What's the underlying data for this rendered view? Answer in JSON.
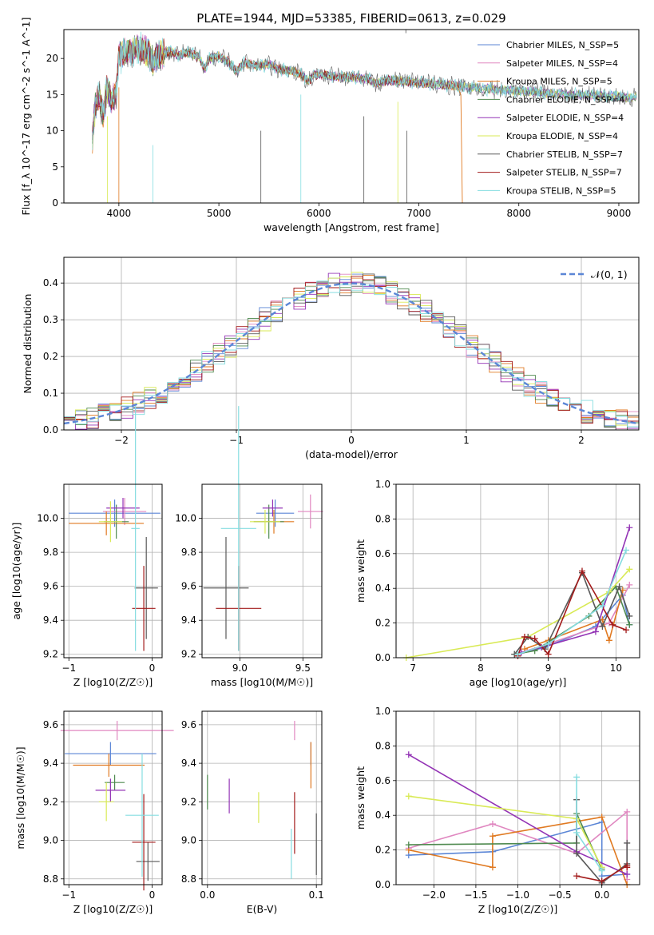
{
  "figure": {
    "title": "PLATE=1944, MJD=53385, FIBERID=0613, z=0.029",
    "colors": {
      "c0": "#5b86d6",
      "c1": "#e087c0",
      "c2": "#e07a22",
      "c3": "#4f8a4f",
      "c4": "#9333b5",
      "c5": "#d9ea56",
      "c6": "#595959",
      "c7": "#a31b1b",
      "c8": "#86dde0"
    }
  },
  "chart_data": [
    {
      "id": "spectrum",
      "type": "line",
      "title": "PLATE=1944, MJD=53385, FIBERID=0613, z=0.029",
      "xlabel": "wavelength [Angstrom, rest frame]",
      "ylabel": "Flux [f_λ 10^-17 erg cm^-2 s^-1 A^-1]",
      "xlim": [
        3450,
        9200
      ],
      "ylim": [
        0,
        24
      ],
      "xticks": [
        "4000",
        "5000",
        "6000",
        "7000",
        "8000",
        "9000"
      ],
      "yticks": [
        "0",
        "5",
        "10",
        "15",
        "20"
      ],
      "grid": false,
      "legend_position": "top-right",
      "spectrum_anchors": [
        [
          3735,
          8.5
        ],
        [
          3760,
          13
        ],
        [
          3800,
          15
        ],
        [
          3840,
          12
        ],
        [
          3880,
          16
        ],
        [
          3930,
          14
        ],
        [
          3970,
          15
        ],
        [
          4000,
          20
        ],
        [
          4050,
          21
        ],
        [
          4100,
          20.8
        ],
        [
          4200,
          21.5
        ],
        [
          4300,
          20.8
        ],
        [
          4340,
          19.5
        ],
        [
          4400,
          20.5
        ],
        [
          4500,
          21
        ],
        [
          4600,
          20.5
        ],
        [
          4700,
          20.8
        ],
        [
          4800,
          20.2
        ],
        [
          4861,
          18.5
        ],
        [
          4900,
          20
        ],
        [
          5000,
          20.3
        ],
        [
          5100,
          19.5
        ],
        [
          5175,
          18.2
        ],
        [
          5250,
          19.3
        ],
        [
          5400,
          19
        ],
        [
          5500,
          19.2
        ],
        [
          5600,
          18.5
        ],
        [
          5700,
          18.3
        ],
        [
          5800,
          18
        ],
        [
          5890,
          16.8
        ],
        [
          5950,
          17.8
        ],
        [
          6100,
          17.6
        ],
        [
          6300,
          17.4
        ],
        [
          6500,
          17.2
        ],
        [
          6563,
          16.5
        ],
        [
          6700,
          17
        ],
        [
          6900,
          16.8
        ],
        [
          7000,
          16.6
        ],
        [
          7200,
          16.4
        ],
        [
          7400,
          16.2
        ],
        [
          7500,
          16
        ],
        [
          7700,
          15.8
        ],
        [
          7900,
          15.6
        ],
        [
          8100,
          15.4
        ],
        [
          8300,
          15.2
        ],
        [
          8500,
          15
        ],
        [
          8700,
          14.9
        ],
        [
          8900,
          14.8
        ],
        [
          9000,
          14.7
        ],
        [
          9100,
          14.6
        ]
      ],
      "series": [
        {
          "name": "Chabrier MILES, N_SSP=5",
          "color_key": "c0"
        },
        {
          "name": "Salpeter MILES, N_SSP=4",
          "color_key": "c1"
        },
        {
          "name": "Kroupa MILES, N_SSP=5",
          "color_key": "c2"
        },
        {
          "name": "Chabrier ELODIE, N_SSP=4",
          "color_key": "c3"
        },
        {
          "name": "Salpeter ELODIE, N_SSP=4",
          "color_key": "c4"
        },
        {
          "name": "Kroupa ELODIE, N_SSP=4",
          "color_key": "c5"
        },
        {
          "name": "Chabrier STELIB, N_SSP=7",
          "color_key": "c6"
        },
        {
          "name": "Salpeter STELIB, N_SSP=7",
          "color_key": "c7"
        },
        {
          "name": "Kroupa STELIB, N_SSP=5",
          "color_key": "c8"
        }
      ]
    },
    {
      "id": "residuals",
      "type": "step",
      "xlabel": "(data-model)/error",
      "ylabel": "Normed distribution",
      "xlim": [
        -2.5,
        2.5
      ],
      "ylim": [
        0,
        0.47
      ],
      "xticks": [
        "−2",
        "−1",
        "0",
        "1",
        "2"
      ],
      "yticks": [
        "0.0",
        "0.1",
        "0.2",
        "0.3",
        "0.4"
      ],
      "grid": true,
      "legend_label": "𝒩(0, 1)",
      "legend_position": "top-right",
      "bin_width": 0.1
    },
    {
      "id": "age_vs_Z",
      "type": "errorbar",
      "xlabel": "Z [log10(Z/Z☉)]",
      "ylabel": "age  [log10(age/yr)]",
      "xlim": [
        -1.06,
        0.12
      ],
      "ylim": [
        9.18,
        10.2
      ],
      "xticks": [
        "−1",
        "0"
      ],
      "yticks": [
        "9.2",
        "9.4",
        "9.6",
        "9.8",
        "10.0"
      ],
      "grid": true,
      "points": [
        {
          "c": "c0",
          "x": -0.45,
          "xerr": 0.55,
          "y": 10.03,
          "yerr": 0.08
        },
        {
          "c": "c1",
          "x": -0.33,
          "xerr": 0.26,
          "y": 10.04,
          "yerr": 0.08
        },
        {
          "c": "c2",
          "x": -0.55,
          "xerr": 0.45,
          "y": 9.97,
          "yerr": 0.07
        },
        {
          "c": "c3",
          "x": -0.43,
          "xerr": 0.15,
          "y": 9.98,
          "yerr": 0.1
        },
        {
          "c": "c4",
          "x": -0.35,
          "xerr": 0.2,
          "y": 10.06,
          "yerr": 0.06
        },
        {
          "c": "c5",
          "x": -0.5,
          "xerr": 0.14,
          "y": 9.98,
          "yerr": 0.12
        },
        {
          "c": "c6",
          "x": -0.07,
          "xerr": 0.14,
          "y": 9.59,
          "yerr": 0.3
        },
        {
          "c": "c7",
          "x": -0.1,
          "xerr": 0.14,
          "y": 9.47,
          "yerr": 0.25
        },
        {
          "c": "c8",
          "x": -0.2,
          "xerr": 0.05,
          "y": 9.94,
          "yerr": 0.72
        }
      ]
    },
    {
      "id": "age_vs_mass",
      "type": "errorbar",
      "xlabel": "mass [log10(M/M☉)]",
      "ylabel": "",
      "xlim": [
        8.7,
        9.65
      ],
      "ylim": [
        9.18,
        10.2
      ],
      "xticks": [
        "9.0",
        "9.5"
      ],
      "yticks": [
        "9.2",
        "9.4",
        "9.6",
        "9.8",
        "10.0"
      ],
      "grid": true,
      "points": [
        {
          "c": "c0",
          "x": 9.28,
          "xerr": 0.15,
          "y": 10.03,
          "yerr": 0.08
        },
        {
          "c": "c1",
          "x": 9.56,
          "xerr": 0.1,
          "y": 10.04,
          "yerr": 0.1
        },
        {
          "c": "c2",
          "x": 9.27,
          "xerr": 0.16,
          "y": 9.98,
          "yerr": 0.07
        },
        {
          "c": "c3",
          "x": 9.23,
          "xerr": 0.12,
          "y": 9.98,
          "yerr": 0.1
        },
        {
          "c": "c4",
          "x": 9.26,
          "xerr": 0.08,
          "y": 10.06,
          "yerr": 0.05
        },
        {
          "c": "c5",
          "x": 9.2,
          "xerr": 0.12,
          "y": 9.98,
          "yerr": 0.07
        },
        {
          "c": "c6",
          "x": 8.89,
          "xerr": 0.18,
          "y": 9.59,
          "yerr": 0.3
        },
        {
          "c": "c7",
          "x": 8.99,
          "xerr": 0.18,
          "y": 9.47,
          "yerr": 0.25
        },
        {
          "c": "c8",
          "x": 8.99,
          "xerr": 0.14,
          "y": 9.94,
          "yerr": 0.72
        }
      ]
    },
    {
      "id": "mass_weight_vs_age",
      "type": "line",
      "xlabel": "age  [log10(age/yr)]",
      "ylabel": "mass weight",
      "xlim": [
        6.75,
        10.35
      ],
      "ylim": [
        0,
        1
      ],
      "xticks": [
        "7",
        "8",
        "9",
        "10"
      ],
      "yticks": [
        "0.0",
        "0.2",
        "0.4",
        "0.6",
        "0.8",
        "1.0"
      ],
      "grid": true,
      "series": [
        {
          "c": "c0",
          "points": [
            [
              8.55,
              0.02
            ],
            [
              8.95,
              0.06
            ],
            [
              9.7,
              0.18
            ],
            [
              10.1,
              0.36
            ],
            [
              10.2,
              0.19
            ]
          ]
        },
        {
          "c": "c1",
          "points": [
            [
              8.6,
              0.03
            ],
            [
              9.0,
              0.08
            ],
            [
              9.9,
              0.2
            ],
            [
              10.2,
              0.42
            ]
          ]
        },
        {
          "c": "c2",
          "points": [
            [
              8.65,
              0.05
            ],
            [
              9.0,
              0.1
            ],
            [
              9.8,
              0.22
            ],
            [
              9.9,
              0.1
            ],
            [
              10.1,
              0.39
            ]
          ]
        },
        {
          "c": "c3",
          "points": [
            [
              8.5,
              0.02
            ],
            [
              8.8,
              0.04
            ],
            [
              9.6,
              0.24
            ],
            [
              10.0,
              0.41
            ],
            [
              10.2,
              0.19
            ]
          ]
        },
        {
          "c": "c4",
          "points": [
            [
              8.6,
              0.03
            ],
            [
              8.9,
              0.06
            ],
            [
              9.7,
              0.15
            ],
            [
              10.2,
              0.75
            ]
          ]
        },
        {
          "c": "c5",
          "points": [
            [
              6.9,
              0.0
            ],
            [
              8.7,
              0.12
            ],
            [
              9.9,
              0.38
            ],
            [
              10.2,
              0.51
            ]
          ]
        },
        {
          "c": "c6",
          "points": [
            [
              8.5,
              0.02
            ],
            [
              8.7,
              0.12
            ],
            [
              8.95,
              0.05
            ],
            [
              9.5,
              0.49
            ],
            [
              9.8,
              0.18
            ],
            [
              10.05,
              0.41
            ],
            [
              10.2,
              0.24
            ]
          ]
        },
        {
          "c": "c7",
          "points": [
            [
              8.55,
              0.01
            ],
            [
              8.65,
              0.12
            ],
            [
              8.8,
              0.11
            ],
            [
              9.0,
              0.02
            ],
            [
              9.5,
              0.5
            ],
            [
              9.95,
              0.19
            ],
            [
              10.15,
              0.16
            ]
          ]
        },
        {
          "c": "c8",
          "points": [
            [
              8.55,
              0.02
            ],
            [
              9.0,
              0.08
            ],
            [
              9.8,
              0.3
            ],
            [
              10.15,
              0.62
            ]
          ]
        }
      ]
    },
    {
      "id": "mass_vs_Z",
      "type": "errorbar",
      "xlabel": "Z [log10(Z/Z☉)]",
      "ylabel": "mass [log10(M/M☉)]",
      "xlim": [
        -1.06,
        0.12
      ],
      "ylim": [
        8.77,
        9.67
      ],
      "xticks": [
        "−1",
        "0"
      ],
      "yticks": [
        "8.8",
        "9.0",
        "9.2",
        "9.4",
        "9.6"
      ],
      "grid": true,
      "points": [
        {
          "c": "c0",
          "x": -0.5,
          "xerr": 0.55,
          "y": 9.45,
          "yerr": 0.06
        },
        {
          "c": "c1",
          "x": -0.42,
          "xerr": 0.68,
          "y": 9.57,
          "yerr": 0.05
        },
        {
          "c": "c2",
          "x": -0.52,
          "xerr": 0.43,
          "y": 9.39,
          "yerr": 0.06
        },
        {
          "c": "c3",
          "x": -0.45,
          "xerr": 0.12,
          "y": 9.3,
          "yerr": 0.04
        },
        {
          "c": "c4",
          "x": -0.5,
          "xerr": 0.18,
          "y": 9.26,
          "yerr": 0.06
        },
        {
          "c": "c5",
          "x": -0.55,
          "xerr": 0.09,
          "y": 9.2,
          "yerr": 0.1
        },
        {
          "c": "c6",
          "x": -0.05,
          "xerr": 0.14,
          "y": 8.89,
          "yerr": 0.1
        },
        {
          "c": "c7",
          "x": -0.1,
          "xerr": 0.14,
          "y": 8.99,
          "yerr": 0.25
        },
        {
          "c": "c8",
          "x": -0.12,
          "xerr": 0.2,
          "y": 9.13,
          "yerr": 0.32
        }
      ]
    },
    {
      "id": "mass_vs_EBV",
      "type": "errorbar",
      "xlabel": "E(B-V)",
      "ylabel": "",
      "xlim": [
        -0.005,
        0.105
      ],
      "ylim": [
        8.77,
        9.67
      ],
      "xticks": [
        "0.0",
        "0.1"
      ],
      "yticks": [
        "8.8",
        "9.0",
        "9.2",
        "9.4",
        "9.6"
      ],
      "grid": true,
      "points": [
        {
          "c": "c0",
          "x": 0.095,
          "xerr": 0,
          "y": 9.45,
          "yerr": 0.06
        },
        {
          "c": "c1",
          "x": 0.08,
          "xerr": 0,
          "y": 9.57,
          "yerr": 0.05
        },
        {
          "c": "c2",
          "x": 0.095,
          "xerr": 0,
          "y": 9.39,
          "yerr": 0.12
        },
        {
          "c": "c3",
          "x": 0.0,
          "xerr": 0,
          "y": 9.25,
          "yerr": 0.09
        },
        {
          "c": "c4",
          "x": 0.02,
          "xerr": 0,
          "y": 9.23,
          "yerr": 0.09
        },
        {
          "c": "c5",
          "x": 0.047,
          "xerr": 0,
          "y": 9.17,
          "yerr": 0.08
        },
        {
          "c": "c6",
          "x": 0.1,
          "xerr": 0,
          "y": 8.98,
          "yerr": 0.16
        },
        {
          "c": "c7",
          "x": 0.08,
          "xerr": 0,
          "y": 9.09,
          "yerr": 0.16
        },
        {
          "c": "c8",
          "x": 0.077,
          "xerr": 0,
          "y": 8.93,
          "yerr": 0.13
        }
      ]
    },
    {
      "id": "mass_weight_vs_Z",
      "type": "line",
      "xlabel": "Z [log10(Z/Z☉)]",
      "ylabel": "mass weight",
      "xlim": [
        -2.45,
        0.45
      ],
      "ylim": [
        0,
        1
      ],
      "xticks": [
        "−2.0",
        "−1.5",
        "−1.0",
        "−0.5",
        "0.0"
      ],
      "yticks": [
        "0.0",
        "0.2",
        "0.4",
        "0.6",
        "0.8",
        "1.0"
      ],
      "grid": true,
      "series": [
        {
          "c": "c0",
          "points": [
            [
              -2.3,
              0.17
            ],
            [
              -1.3,
              0.19
            ],
            [
              0.0,
              0.36
            ],
            [
              0.0,
              0.05
            ],
            [
              0.3,
              0.06
            ]
          ]
        },
        {
          "c": "c1",
          "points": [
            [
              -2.3,
              0.21
            ],
            [
              -1.3,
              0.35
            ],
            [
              -0.3,
              0.18
            ],
            [
              0.3,
              0.42
            ],
            [
              0.3,
              0.03
            ]
          ]
        },
        {
          "c": "c2",
          "points": [
            [
              -2.3,
              0.2
            ],
            [
              -1.3,
              0.1
            ],
            [
              -1.3,
              0.28
            ],
            [
              0.0,
              0.39
            ],
            [
              0.3,
              0.0
            ]
          ]
        },
        {
          "c": "c3",
          "points": [
            [
              -2.3,
              0.23
            ],
            [
              -0.3,
              0.24
            ],
            [
              -0.3,
              0.41
            ],
            [
              0.0,
              0.09
            ]
          ]
        },
        {
          "c": "c4",
          "points": [
            [
              -2.3,
              0.75
            ],
            [
              -0.3,
              0.19
            ],
            [
              0.3,
              0.06
            ]
          ]
        },
        {
          "c": "c5",
          "points": [
            [
              -2.3,
              0.51
            ],
            [
              -0.3,
              0.38
            ],
            [
              0.0,
              0.1
            ]
          ]
        },
        {
          "c": "c6",
          "points": [
            [
              -0.3,
              0.49
            ],
            [
              -0.3,
              0.18
            ],
            [
              0.0,
              0.01
            ],
            [
              0.3,
              0.12
            ],
            [
              0.3,
              0.24
            ]
          ]
        },
        {
          "c": "c7",
          "points": [
            [
              -0.3,
              0.05
            ],
            [
              0.0,
              0.02
            ],
            [
              0.3,
              0.11
            ],
            [
              0.3,
              0.1
            ]
          ]
        },
        {
          "c": "c8",
          "points": [
            [
              -0.3,
              0.62
            ],
            [
              -0.3,
              0.3
            ],
            [
              0.0,
              0.08
            ]
          ]
        }
      ]
    }
  ]
}
